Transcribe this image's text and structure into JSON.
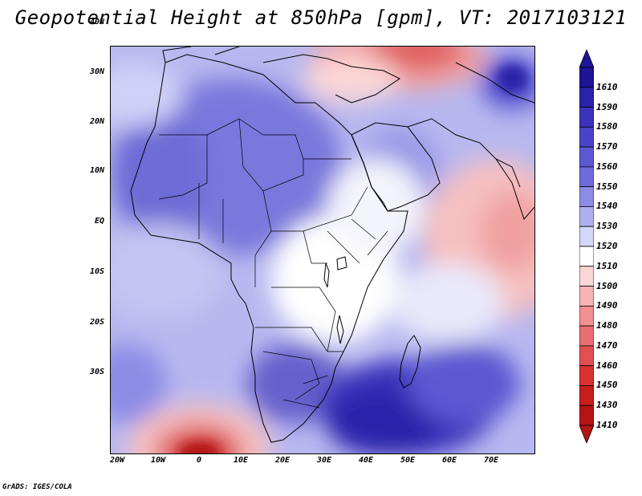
{
  "title": "Geopotential Height at 850hPa [gpm], VT: 2017103121",
  "footer": "GrADS: IGES/COLA",
  "lat_labels": [
    "40N",
    "30N",
    "20N",
    "10N",
    "EQ",
    "10S",
    "20S",
    "30S"
  ],
  "lon_labels": [
    "20W",
    "10W",
    "0",
    "10E",
    "20E",
    "30E",
    "40E",
    "50E",
    "60E",
    "70E"
  ],
  "colorbar": {
    "levels": [
      "1610",
      "1590",
      "1580",
      "1570",
      "1560",
      "1550",
      "1540",
      "1530",
      "1520",
      "1510",
      "1500",
      "1490",
      "1480",
      "1470",
      "1460",
      "1450",
      "1430",
      "1410"
    ],
    "colors": [
      "#1e1496",
      "#2a22aa",
      "#3a32bb",
      "#4a44c8",
      "#5c58d2",
      "#6e6cdc",
      "#8c8ce6",
      "#b0b0f0",
      "#d4d6fa",
      "#ffffff",
      "#fbd6d6",
      "#f7b4b4",
      "#f09090",
      "#e87070",
      "#e05050",
      "#d83232",
      "#c81e1e",
      "#b41414"
    ]
  },
  "colors": {
    "land_outline": "#000000",
    "background": "#ffffff"
  }
}
